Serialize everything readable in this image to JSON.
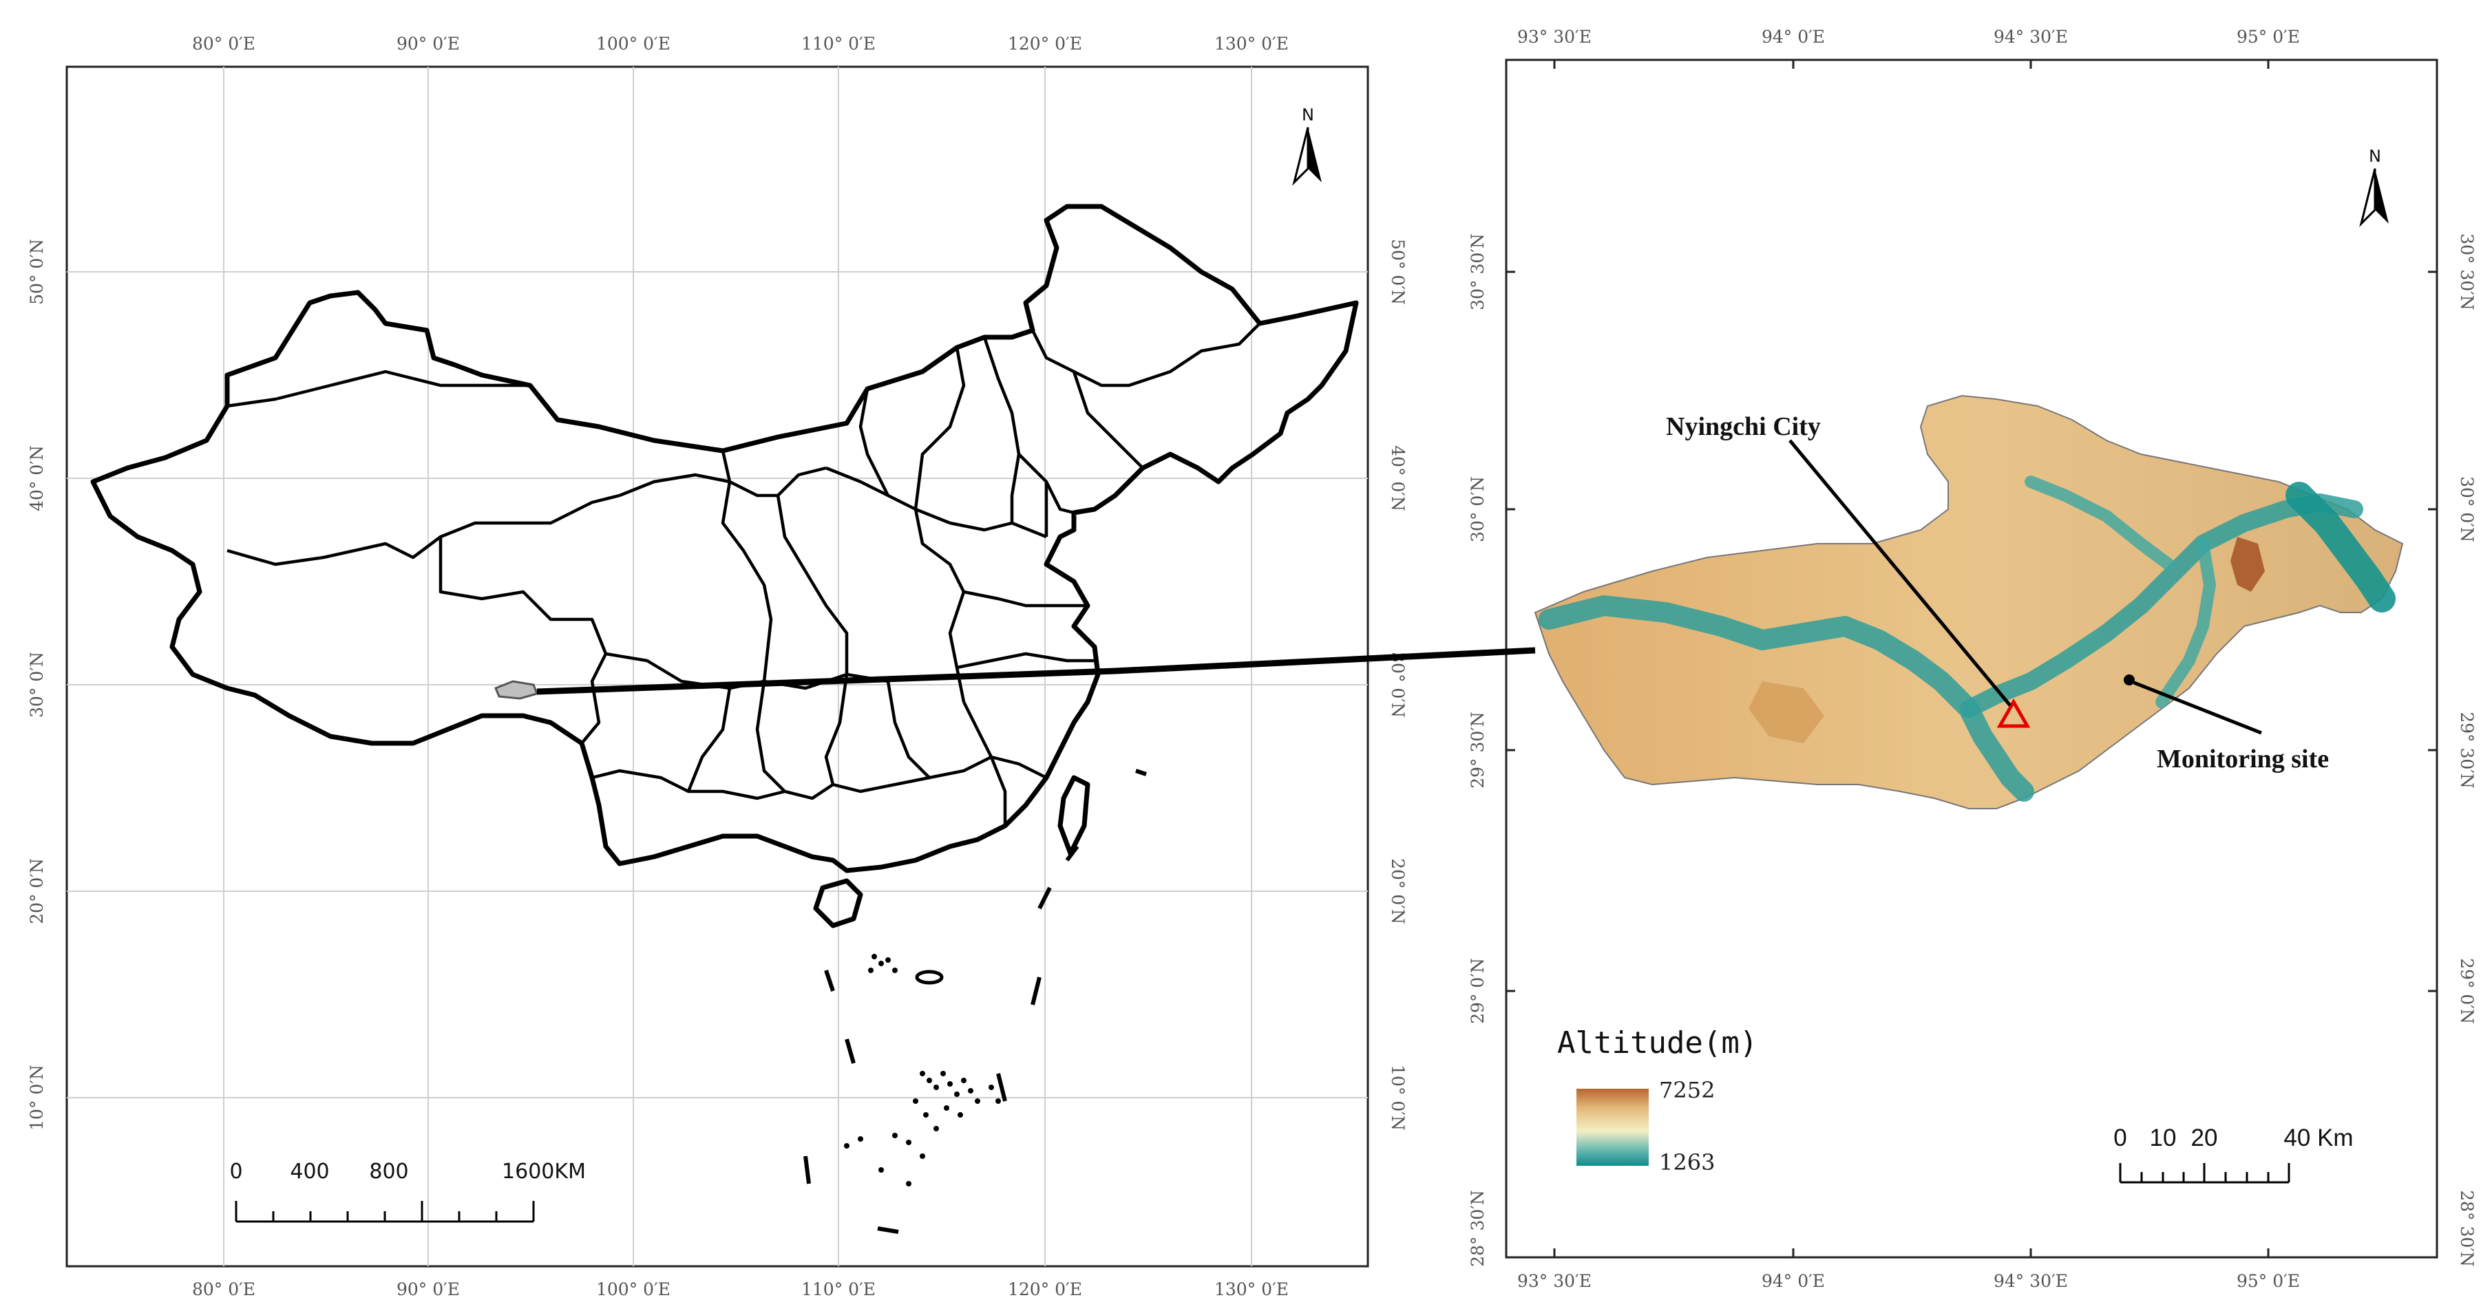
{
  "left_map": {
    "top_ticks": [
      "80° 0′E",
      "90° 0′E",
      "100° 0′E",
      "110° 0′E",
      "120° 0′E",
      "130° 0′E"
    ],
    "bottom_ticks": [
      "80° 0′E",
      "90° 0′E",
      "100° 0′E",
      "110° 0′E",
      "120° 0′E",
      "130° 0′E"
    ],
    "left_ticks": [
      "50° 0′N",
      "40° 0′N",
      "30° 0′N",
      "20° 0′N",
      "10° 0′N"
    ],
    "right_ticks": [
      "50° 0′N",
      "40° 0′N",
      "30° 0′N",
      "20° 0′N",
      "10° 0′N"
    ],
    "north_label": "N",
    "scale_labels": [
      "0",
      "400",
      "800",
      "1600KM"
    ]
  },
  "right_map": {
    "top_ticks": [
      "93° 30′E",
      "94° 0′E",
      "94° 30′E",
      "95° 0′E"
    ],
    "bottom_ticks": [
      "93° 30′E",
      "94° 0′E",
      "94° 30′E",
      "95° 0′E"
    ],
    "left_ticks": [
      "30° 30′N",
      "30° 0′N",
      "29° 30′N",
      "29° 0′N",
      "28° 30′N"
    ],
    "right_ticks": [
      "30° 30′N",
      "30° 0′N",
      "29° 30′N",
      "29° 0′N",
      "28° 30′N"
    ],
    "north_label": "N",
    "city_label": "Nyingchi City",
    "site_label": "Monitoring site",
    "legend": {
      "title": "Altitude(m)",
      "max": "7252",
      "min": "1263",
      "colors": [
        "#b8662f",
        "#e3b978",
        "#f3efc4",
        "#66b8b0",
        "#0f8c8c"
      ]
    },
    "scale_labels": [
      "0",
      "10",
      "20",
      "40 Km"
    ]
  }
}
